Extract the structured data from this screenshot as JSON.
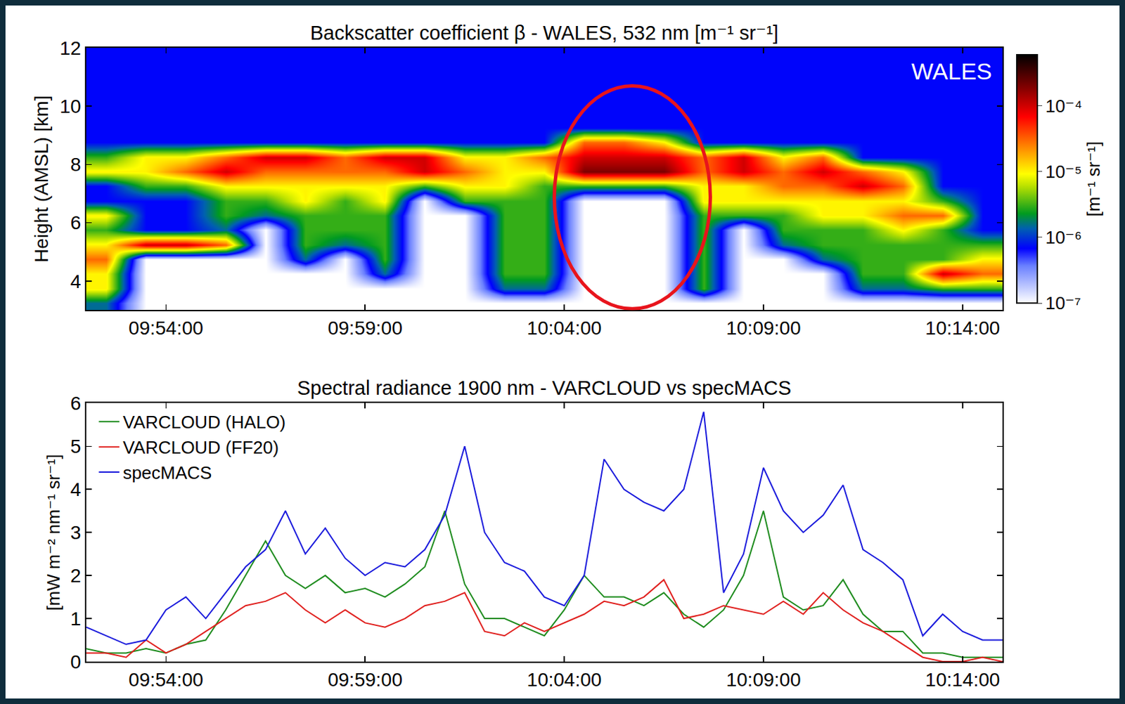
{
  "chart_data": [
    {
      "type": "heatmap",
      "title": "Backscatter coefficient β - WALES, 532 nm [m⁻¹ sr⁻¹]",
      "annotation": "WALES",
      "y_label": "Height (AMSL) [km]",
      "xlim": [
        "09:52:00",
        "10:15:00"
      ],
      "xticks": [
        "09:54:00",
        "09:59:00",
        "10:04:00",
        "10:09:00",
        "10:14:00"
      ],
      "ylim": [
        3,
        12
      ],
      "yticks": [
        4,
        6,
        8,
        10,
        12
      ],
      "grid": false,
      "x": [
        "09:52:30",
        "09:53:30",
        "09:54:30",
        "09:55:30",
        "09:56:30",
        "09:57:30",
        "09:58:30",
        "09:59:30",
        "10:00:30",
        "10:01:30",
        "10:02:30",
        "10:03:30",
        "10:04:30",
        "10:05:30",
        "10:06:30",
        "10:07:30",
        "10:08:30",
        "10:09:30",
        "10:10:30",
        "10:11:30",
        "10:12:30",
        "10:13:30",
        "10:14:30"
      ],
      "y": [
        3.25,
        3.75,
        4.25,
        4.75,
        5.25,
        5.75,
        6.25,
        6.75,
        7.25,
        7.75,
        8.25,
        8.75,
        9.25,
        9.75,
        10.25,
        10.75,
        11.25,
        11.75
      ],
      "z": [
        [
          1.5e-06,
          1e-07,
          1e-07,
          1e-07,
          1e-07,
          1e-07,
          1e-07,
          1e-07,
          1e-07,
          1e-07,
          1e-07,
          1e-07,
          1e-07,
          1e-07,
          1e-07,
          1e-07,
          1e-07,
          1e-07,
          1e-07,
          1e-07,
          1e-07,
          1e-07,
          1e-07
        ],
        [
          1e-05,
          1e-07,
          1e-07,
          1e-07,
          1e-07,
          1e-07,
          1e-07,
          1e-07,
          1e-07,
          1e-07,
          1.5e-06,
          1.5e-06,
          1e-07,
          1e-07,
          1e-07,
          3e-06,
          1e-07,
          1e-07,
          1e-07,
          1.5e-06,
          1.5e-06,
          3e-06,
          3e-06
        ],
        [
          1e-05,
          1e-07,
          1e-07,
          1e-07,
          1e-07,
          1e-07,
          1e-07,
          1.5e-06,
          1e-07,
          1e-07,
          3e-06,
          3e-06,
          1e-07,
          1e-07,
          1e-07,
          3e-06,
          1e-07,
          1e-07,
          1e-07,
          3e-06,
          3e-06,
          0.0001,
          3e-05
        ],
        [
          3e-05,
          1e-07,
          1e-07,
          1e-07,
          1e-07,
          1.5e-06,
          1e-07,
          3e-06,
          1e-07,
          1e-07,
          3e-06,
          3e-06,
          1e-07,
          1e-07,
          1e-07,
          3e-06,
          1e-07,
          1e-07,
          1.5e-06,
          3e-06,
          3e-06,
          3e-06,
          1e-05
        ],
        [
          1e-05,
          0.0001,
          0.0001,
          3e-05,
          1e-07,
          3e-06,
          1.5e-06,
          3e-06,
          1e-07,
          1e-07,
          3e-06,
          3e-06,
          1e-07,
          1e-07,
          1e-07,
          3e-06,
          1e-07,
          1.5e-06,
          3e-06,
          3e-06,
          3e-06,
          3e-06,
          3e-06
        ],
        [
          3e-06,
          7e-07,
          7e-07,
          1.5e-06,
          1e-07,
          3e-06,
          3e-06,
          3e-06,
          1e-07,
          1e-07,
          3e-06,
          3e-06,
          1e-07,
          1e-07,
          1e-07,
          3e-06,
          1e-07,
          3e-06,
          3e-06,
          3e-06,
          1e-05,
          3e-06,
          7e-07
        ],
        [
          1e-05,
          7e-07,
          7e-07,
          3e-06,
          1.5e-06,
          3e-06,
          3e-06,
          3e-06,
          1e-07,
          1e-07,
          3e-06,
          3e-06,
          1e-07,
          1e-07,
          1e-07,
          3e-06,
          3e-06,
          3e-06,
          1e-05,
          1e-05,
          3e-05,
          3e-05,
          7e-07
        ],
        [
          7e-07,
          7e-07,
          7e-07,
          3e-06,
          3e-06,
          1e-05,
          3e-06,
          1e-05,
          1e-07,
          3e-06,
          3e-06,
          3e-06,
          1e-07,
          1e-07,
          1e-07,
          1e-05,
          1e-05,
          1e-05,
          1e-05,
          1e-05,
          1e-05,
          3e-06,
          7e-07
        ],
        [
          7e-07,
          3e-06,
          3e-06,
          1e-05,
          1e-05,
          1e-05,
          1e-05,
          1e-05,
          3e-06,
          1e-05,
          1e-05,
          3e-06,
          3e-06,
          3e-06,
          3e-06,
          1e-05,
          1e-05,
          3e-05,
          3e-05,
          0.0001,
          3e-05,
          7e-07,
          7e-07
        ],
        [
          1e-05,
          1e-05,
          3e-05,
          0.0001,
          3e-05,
          3e-05,
          3e-05,
          3e-05,
          0.0001,
          3e-05,
          1e-05,
          1e-05,
          0.0002,
          0.0002,
          0.0002,
          3e-05,
          0.0001,
          3e-05,
          0.0001,
          3e-05,
          1e-05,
          7e-07,
          7e-07
        ],
        [
          3e-06,
          1e-05,
          1e-05,
          3e-05,
          0.0001,
          0.0001,
          3e-05,
          0.0001,
          0.0001,
          1e-05,
          1e-05,
          3e-05,
          0.0001,
          0.0001,
          0.0001,
          3e-05,
          0.0001,
          1e-05,
          3e-05,
          7e-07,
          7e-07,
          7e-07,
          7e-07
        ],
        [
          7e-07,
          7e-07,
          7e-07,
          7e-07,
          7e-07,
          7e-07,
          7e-07,
          7e-07,
          7e-07,
          7e-07,
          7e-07,
          7e-07,
          3e-05,
          3e-05,
          1e-05,
          7e-07,
          7e-07,
          7e-07,
          7e-07,
          7e-07,
          7e-07,
          7e-07,
          7e-07
        ],
        [
          7e-07,
          7e-07,
          7e-07,
          7e-07,
          7e-07,
          7e-07,
          7e-07,
          7e-07,
          7e-07,
          7e-07,
          7e-07,
          7e-07,
          7e-07,
          7e-07,
          7e-07,
          7e-07,
          7e-07,
          7e-07,
          7e-07,
          7e-07,
          7e-07,
          7e-07,
          7e-07
        ],
        [
          7e-07,
          7e-07,
          7e-07,
          7e-07,
          7e-07,
          7e-07,
          7e-07,
          7e-07,
          7e-07,
          7e-07,
          7e-07,
          7e-07,
          7e-07,
          7e-07,
          7e-07,
          7e-07,
          7e-07,
          7e-07,
          7e-07,
          7e-07,
          7e-07,
          7e-07,
          7e-07
        ],
        [
          7e-07,
          7e-07,
          7e-07,
          7e-07,
          7e-07,
          7e-07,
          7e-07,
          7e-07,
          7e-07,
          7e-07,
          7e-07,
          7e-07,
          7e-07,
          7e-07,
          7e-07,
          7e-07,
          7e-07,
          7e-07,
          7e-07,
          7e-07,
          7e-07,
          7e-07,
          7e-07
        ],
        [
          7e-07,
          7e-07,
          7e-07,
          7e-07,
          7e-07,
          7e-07,
          7e-07,
          7e-07,
          7e-07,
          7e-07,
          7e-07,
          7e-07,
          7e-07,
          7e-07,
          7e-07,
          7e-07,
          7e-07,
          7e-07,
          7e-07,
          7e-07,
          7e-07,
          7e-07,
          7e-07
        ],
        [
          7e-07,
          7e-07,
          7e-07,
          7e-07,
          7e-07,
          7e-07,
          7e-07,
          7e-07,
          7e-07,
          7e-07,
          7e-07,
          7e-07,
          7e-07,
          7e-07,
          7e-07,
          7e-07,
          7e-07,
          7e-07,
          7e-07,
          7e-07,
          7e-07,
          7e-07,
          7e-07
        ],
        [
          7e-07,
          7e-07,
          7e-07,
          7e-07,
          7e-07,
          7e-07,
          7e-07,
          7e-07,
          7e-07,
          7e-07,
          7e-07,
          7e-07,
          7e-07,
          7e-07,
          7e-07,
          7e-07,
          7e-07,
          7e-07,
          7e-07,
          7e-07,
          7e-07,
          7e-07,
          7e-07
        ]
      ],
      "color_scale": {
        "label": "[m⁻¹ sr⁻¹]",
        "log": true,
        "lim": [
          1e-07,
          0.0006
        ],
        "ticks": [
          {
            "value": 1e-07,
            "label": "10⁻⁷"
          },
          {
            "value": 1e-06,
            "label": "10⁻⁶"
          },
          {
            "value": 1e-05,
            "label": "10⁻⁵"
          },
          {
            "value": 0.0001,
            "label": "10⁻⁴"
          }
        ]
      },
      "highlight": {
        "x": [
          "10:03:45",
          "10:07:40"
        ],
        "y": [
          3.05,
          10.7
        ],
        "color": "#e8141c"
      }
    },
    {
      "type": "line",
      "title": "Spectral radiance 1900 nm - VARCLOUD vs specMACS",
      "y_label": "[mW m⁻² nm⁻¹ sr⁻¹]",
      "xlim": [
        "09:52:00",
        "10:15:00"
      ],
      "xticks": [
        "09:54:00",
        "09:59:00",
        "10:04:00",
        "10:09:00",
        "10:14:00"
      ],
      "ylim": [
        0,
        6
      ],
      "yticks": [
        0,
        1,
        2,
        3,
        4,
        5,
        6
      ],
      "grid": false,
      "legend": "upper left",
      "x": [
        "09:52:00",
        "09:52:30",
        "09:53:00",
        "09:53:30",
        "09:54:00",
        "09:54:30",
        "09:55:00",
        "09:55:30",
        "09:56:00",
        "09:56:30",
        "09:57:00",
        "09:57:30",
        "09:58:00",
        "09:58:30",
        "09:59:00",
        "09:59:30",
        "10:00:00",
        "10:00:30",
        "10:01:00",
        "10:01:30",
        "10:02:00",
        "10:02:30",
        "10:03:00",
        "10:03:30",
        "10:04:00",
        "10:04:30",
        "10:05:00",
        "10:05:30",
        "10:06:00",
        "10:06:30",
        "10:07:00",
        "10:07:30",
        "10:08:00",
        "10:08:30",
        "10:09:00",
        "10:09:30",
        "10:10:00",
        "10:10:30",
        "10:11:00",
        "10:11:30",
        "10:12:00",
        "10:12:30",
        "10:13:00",
        "10:13:30",
        "10:14:00",
        "10:14:30",
        "10:15:00"
      ],
      "series": [
        {
          "name": "VARCLOUD (HALO)",
          "color": "#1e8c1e",
          "values": [
            0.3,
            0.2,
            0.2,
            0.3,
            0.2,
            0.4,
            0.5,
            1.2,
            2.0,
            2.8,
            2.0,
            1.7,
            2.0,
            1.6,
            1.7,
            1.5,
            1.8,
            2.2,
            3.5,
            1.8,
            1.0,
            1.0,
            0.8,
            0.6,
            1.2,
            2.0,
            1.5,
            1.5,
            1.3,
            1.6,
            1.1,
            0.8,
            1.2,
            2.0,
            3.5,
            1.5,
            1.2,
            1.3,
            1.9,
            1.1,
            0.7,
            0.7,
            0.2,
            0.2,
            0.1,
            0.1,
            0.1
          ]
        },
        {
          "name": "VARCLOUD (FF20)",
          "color": "#e0201e",
          "values": [
            0.2,
            0.2,
            0.1,
            0.5,
            0.2,
            0.4,
            0.7,
            1.0,
            1.3,
            1.4,
            1.6,
            1.2,
            0.9,
            1.2,
            0.9,
            0.8,
            1.0,
            1.3,
            1.4,
            1.6,
            0.7,
            0.6,
            0.9,
            0.7,
            0.9,
            1.1,
            1.4,
            1.3,
            1.5,
            1.9,
            1.0,
            1.1,
            1.3,
            1.2,
            1.1,
            1.4,
            1.1,
            1.6,
            1.2,
            0.9,
            0.7,
            0.4,
            0.1,
            0.0,
            0.0,
            0.1,
            0.0
          ]
        },
        {
          "name": "specMACS",
          "color": "#1a1adc",
          "values": [
            0.8,
            0.6,
            0.4,
            0.5,
            1.2,
            1.5,
            1.0,
            1.6,
            2.2,
            2.6,
            3.5,
            2.5,
            3.1,
            2.4,
            2.0,
            2.3,
            2.2,
            2.6,
            3.4,
            5.0,
            3.0,
            2.3,
            2.1,
            1.5,
            1.3,
            2.0,
            4.7,
            4.0,
            3.7,
            3.5,
            4.0,
            5.8,
            1.6,
            2.5,
            4.5,
            3.5,
            3.0,
            3.4,
            4.1,
            2.6,
            2.3,
            1.9,
            0.6,
            1.1,
            0.7,
            0.5,
            0.5
          ]
        }
      ]
    }
  ]
}
